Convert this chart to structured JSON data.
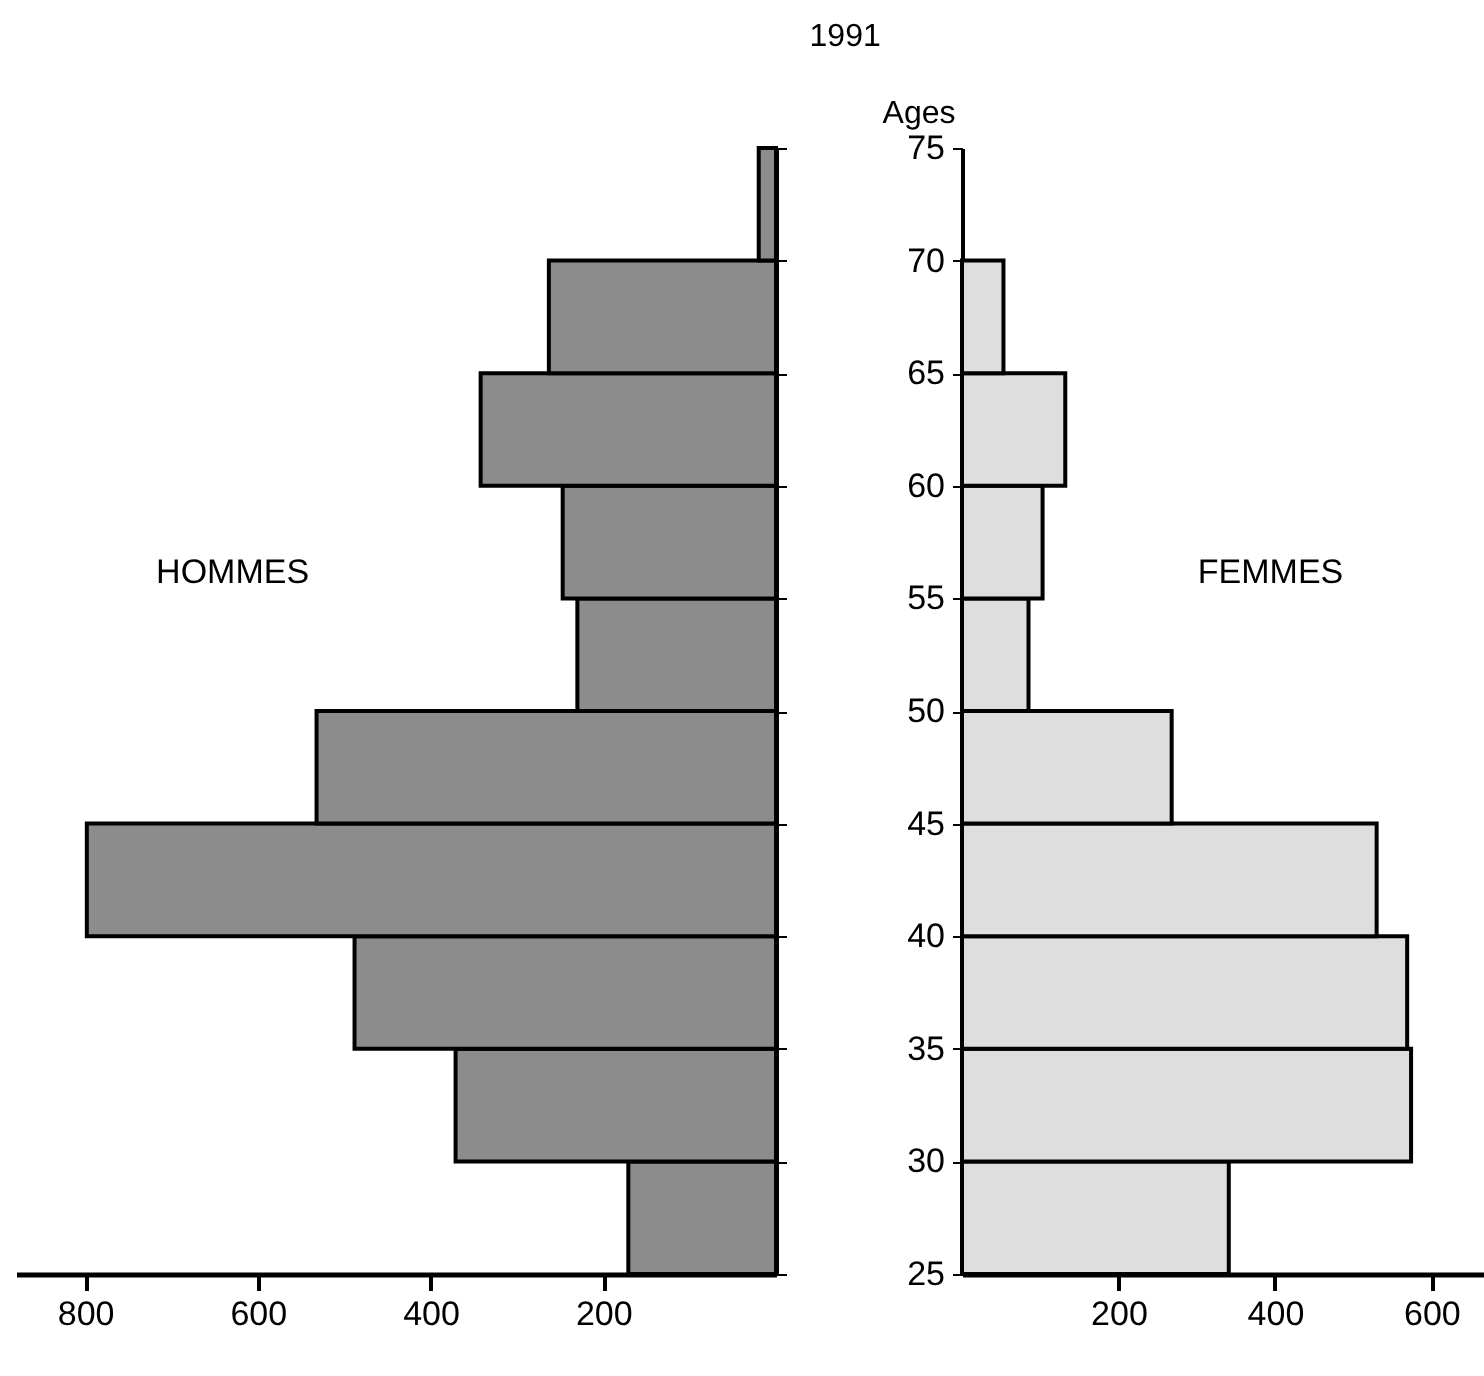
{
  "chart_data": [
    {
      "type": "histogram",
      "orientation": "horizontal",
      "bins": [
        25,
        30,
        35,
        40,
        45,
        50,
        55,
        60,
        65,
        70,
        75
      ],
      "values": [
        171,
        371,
        488,
        798,
        532,
        230,
        247,
        342,
        263,
        20
      ],
      "color": "#8c8c8c",
      "xlim": [
        880,
        0
      ],
      "xticks": [
        800,
        600,
        400,
        200
      ],
      "ylim": [
        25,
        75
      ],
      "yticks": [
        25,
        30,
        35,
        40,
        45,
        50,
        55,
        60,
        65,
        70,
        75
      ],
      "tick_labels": "x",
      "annotations": [
        "HOMMES"
      ]
    },
    {
      "type": "histogram",
      "orientation": "horizontal",
      "title": "1991",
      "ylabel": "Ages",
      "bins": [
        25,
        30,
        35,
        40,
        45,
        50,
        55,
        60,
        65,
        70,
        75
      ],
      "values": [
        341,
        574,
        569,
        530,
        268,
        85,
        103,
        132,
        53,
        null
      ],
      "color": "#dedede",
      "xlim": [
        0,
        680
      ],
      "xticks": [
        200,
        400,
        600
      ],
      "ylim": [
        25,
        75
      ],
      "yticks": [
        25,
        30,
        35,
        40,
        45,
        50,
        55,
        60,
        65,
        70,
        75
      ],
      "annotations": [
        "FEMMES"
      ]
    }
  ]
}
